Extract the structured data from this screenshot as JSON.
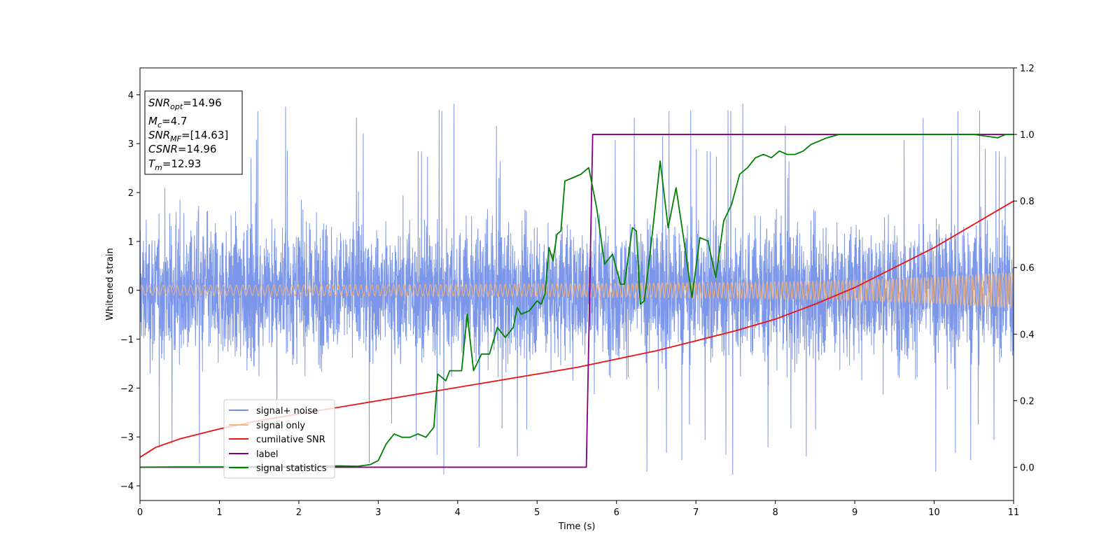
{
  "chart_data": {
    "type": "line",
    "xlabel": "Time (s)",
    "ylabel": "Whitened strain",
    "xlim": [
      0,
      11
    ],
    "ylim": [
      -4.3,
      4.55
    ],
    "y2lim": [
      -0.1,
      1.2
    ],
    "xticks": [
      "0",
      "1",
      "2",
      "3",
      "4",
      "5",
      "6",
      "7",
      "8",
      "9",
      "10",
      "11"
    ],
    "yticks": [
      "4",
      "3",
      "2",
      "1",
      "0",
      "−1",
      "−2",
      "−3",
      "−4"
    ],
    "y2ticks": [
      "1.2",
      "1.0",
      "0.8",
      "0.6",
      "0.4",
      "0.2",
      "0.0"
    ],
    "grid": false,
    "legend_position": "lower-left",
    "legend": [
      "signal+ noise",
      "signal only",
      "cumilative SNR",
      "label",
      "signal statistics"
    ],
    "info_box": {
      "snr_opt_main": "SNR",
      "snr_opt_sub": "opt",
      "snr_opt_value": "=14.96",
      "mc_main": "M",
      "mc_sub": "c",
      "mc_value": "=4.7",
      "snr_mf_main": "SNR",
      "snr_mf_sub": "MF",
      "snr_mf_value": "=[14.63]",
      "csnr_main": "CSNR",
      "csnr_value": "=14.96",
      "tm_main": "T",
      "tm_sub": "m",
      "tm_value": "=12.93"
    },
    "series": [
      {
        "name": "signal+ noise",
        "axis": "left",
        "color": "#7590e8",
        "description_of_shape": "dense noise band spanning roughly -2.2 to 2.3 with spikes up to about 4.0 and down to about -3.9"
      },
      {
        "name": "signal only",
        "axis": "left",
        "color": "#f5b67a",
        "envelope_x": [
          0,
          2,
          4,
          6,
          8,
          9,
          10,
          11
        ],
        "envelope_amplitude": [
          0.1,
          0.11,
          0.12,
          0.14,
          0.17,
          0.21,
          0.27,
          0.37
        ]
      },
      {
        "name": "cumilative SNR",
        "axis": "right",
        "color": "#ee1111",
        "x": [
          0,
          0.2,
          0.5,
          1,
          1.5,
          2,
          2.5,
          3,
          3.5,
          4,
          4.5,
          5,
          5.5,
          6,
          6.5,
          7,
          7.5,
          8,
          8.5,
          9,
          9.5,
          10,
          10.5,
          11
        ],
        "y": [
          0.03,
          0.06,
          0.085,
          0.115,
          0.14,
          0.16,
          0.18,
          0.2,
          0.22,
          0.24,
          0.26,
          0.28,
          0.3,
          0.325,
          0.35,
          0.38,
          0.41,
          0.445,
          0.49,
          0.54,
          0.6,
          0.66,
          0.73,
          0.8
        ]
      },
      {
        "name": "label",
        "axis": "right",
        "color": "#800080",
        "x": [
          0,
          5.62,
          5.7,
          11
        ],
        "y": [
          0.0,
          0.0,
          1.0,
          1.0
        ]
      },
      {
        "name": "signal statistics",
        "axis": "right",
        "color": "#008000",
        "x": [
          0,
          0.5,
          1,
          1.5,
          2,
          2.5,
          2.75,
          2.9,
          3,
          3.1,
          3.2,
          3.3,
          3.4,
          3.5,
          3.6,
          3.7,
          3.75,
          3.85,
          3.9,
          4.0,
          4.05,
          4.12,
          4.2,
          4.3,
          4.4,
          4.5,
          4.6,
          4.7,
          4.75,
          4.8,
          4.9,
          5.0,
          5.05,
          5.1,
          5.15,
          5.2,
          5.25,
          5.3,
          5.35,
          5.45,
          5.55,
          5.65,
          5.75,
          5.85,
          5.95,
          6.05,
          6.1,
          6.2,
          6.25,
          6.3,
          6.35,
          6.45,
          6.55,
          6.65,
          6.75,
          6.85,
          6.95,
          7.05,
          7.15,
          7.25,
          7.35,
          7.45,
          7.55,
          7.65,
          7.75,
          7.85,
          7.95,
          8.05,
          8.15,
          8.25,
          8.35,
          8.45,
          8.55,
          8.65,
          8.8,
          9.0,
          9.5,
          10.0,
          10.5,
          10.8,
          10.9,
          11.0
        ],
        "y": [
          0.0,
          0.001,
          0.001,
          0.002,
          0.003,
          0.004,
          0.003,
          0.008,
          0.02,
          0.07,
          0.1,
          0.09,
          0.09,
          0.1,
          0.09,
          0.12,
          0.28,
          0.26,
          0.29,
          0.29,
          0.29,
          0.46,
          0.29,
          0.34,
          0.34,
          0.42,
          0.39,
          0.42,
          0.48,
          0.46,
          0.47,
          0.5,
          0.49,
          0.52,
          0.66,
          0.62,
          0.7,
          0.71,
          0.86,
          0.87,
          0.88,
          0.9,
          0.78,
          0.61,
          0.64,
          0.55,
          0.55,
          0.72,
          0.71,
          0.49,
          0.5,
          0.7,
          0.92,
          0.72,
          0.84,
          0.68,
          0.51,
          0.69,
          0.68,
          0.57,
          0.74,
          0.79,
          0.88,
          0.9,
          0.93,
          0.94,
          0.93,
          0.95,
          0.94,
          0.94,
          0.95,
          0.97,
          0.98,
          0.99,
          1.0,
          1.0,
          1.0,
          1.0,
          1.0,
          0.99,
          1.0,
          1.0
        ]
      }
    ]
  }
}
